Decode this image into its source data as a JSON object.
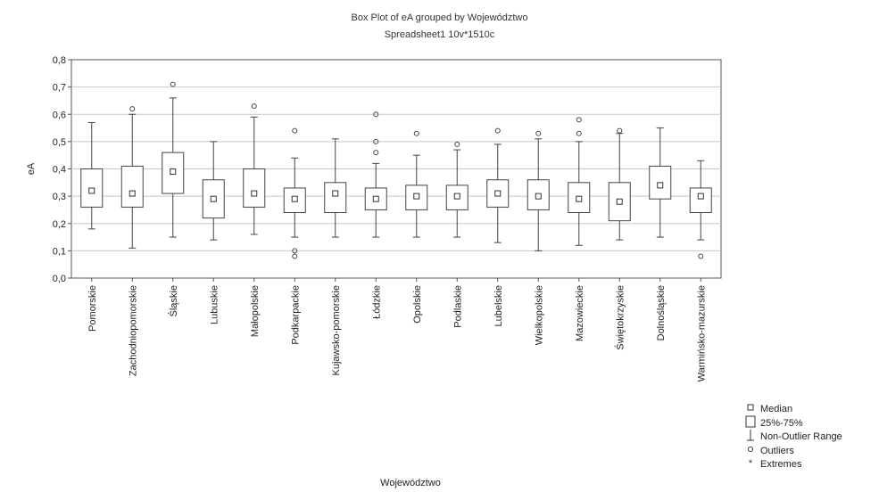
{
  "chart_data": {
    "type": "boxplot",
    "title": "Box Plot of eA grouped by Województwo",
    "subtitle": "Spreadsheet1 10v*1510c",
    "xlabel": "Województwo",
    "ylabel": "eA",
    "ylim": [
      0.0,
      0.8
    ],
    "yticks": [
      "0,0",
      "0,1",
      "0,2",
      "0,3",
      "0,4",
      "0,5",
      "0,6",
      "0,7",
      "0,8"
    ],
    "grid": true,
    "legend_position": "bottom-right",
    "legend": [
      "Median",
      "25%-75%",
      "Non-Outlier Range",
      "Outliers",
      "Extremes"
    ],
    "categories": [
      "Pomorskie",
      "Zachodniopomorskie",
      "Śląskie",
      "Lubuskie",
      "Małopolskie",
      "Podkarpackie",
      "Kujawsko-pomorskie",
      "Łódzkie",
      "Opolskie",
      "Podlaskie",
      "Lubelskie",
      "Wielkopolskie",
      "Mazowieckie",
      "Świętokrzyskie",
      "Dolnośląskie",
      "Warmińsko-mazurskie"
    ],
    "boxes": [
      {
        "min": 0.18,
        "q1": 0.26,
        "median": 0.32,
        "q3": 0.4,
        "max": 0.57,
        "outliers": []
      },
      {
        "min": 0.11,
        "q1": 0.26,
        "median": 0.31,
        "q3": 0.41,
        "max": 0.6,
        "outliers": [
          0.62
        ]
      },
      {
        "min": 0.15,
        "q1": 0.31,
        "median": 0.39,
        "q3": 0.46,
        "max": 0.66,
        "outliers": [
          0.71
        ]
      },
      {
        "min": 0.14,
        "q1": 0.22,
        "median": 0.29,
        "q3": 0.36,
        "max": 0.5,
        "outliers": []
      },
      {
        "min": 0.16,
        "q1": 0.26,
        "median": 0.31,
        "q3": 0.4,
        "max": 0.59,
        "outliers": [
          0.63
        ]
      },
      {
        "min": 0.15,
        "q1": 0.24,
        "median": 0.29,
        "q3": 0.33,
        "max": 0.44,
        "outliers": [
          0.54,
          0.1,
          0.08
        ]
      },
      {
        "min": 0.15,
        "q1": 0.24,
        "median": 0.31,
        "q3": 0.35,
        "max": 0.51,
        "outliers": []
      },
      {
        "min": 0.15,
        "q1": 0.25,
        "median": 0.29,
        "q3": 0.33,
        "max": 0.42,
        "outliers": [
          0.6,
          0.5,
          0.46
        ]
      },
      {
        "min": 0.15,
        "q1": 0.25,
        "median": 0.3,
        "q3": 0.34,
        "max": 0.45,
        "outliers": [
          0.53
        ]
      },
      {
        "min": 0.15,
        "q1": 0.25,
        "median": 0.3,
        "q3": 0.34,
        "max": 0.47,
        "outliers": [
          0.49
        ]
      },
      {
        "min": 0.13,
        "q1": 0.26,
        "median": 0.31,
        "q3": 0.36,
        "max": 0.49,
        "outliers": [
          0.54
        ]
      },
      {
        "min": 0.1,
        "q1": 0.25,
        "median": 0.3,
        "q3": 0.36,
        "max": 0.51,
        "outliers": [
          0.53
        ]
      },
      {
        "min": 0.12,
        "q1": 0.24,
        "median": 0.29,
        "q3": 0.35,
        "max": 0.5,
        "outliers": [
          0.58,
          0.53
        ]
      },
      {
        "min": 0.14,
        "q1": 0.21,
        "median": 0.28,
        "q3": 0.35,
        "max": 0.53,
        "outliers": [
          0.54
        ]
      },
      {
        "min": 0.15,
        "q1": 0.29,
        "median": 0.34,
        "q3": 0.41,
        "max": 0.55,
        "outliers": []
      },
      {
        "min": 0.14,
        "q1": 0.24,
        "median": 0.3,
        "q3": 0.33,
        "max": 0.43,
        "outliers": [
          0.08
        ]
      }
    ]
  }
}
